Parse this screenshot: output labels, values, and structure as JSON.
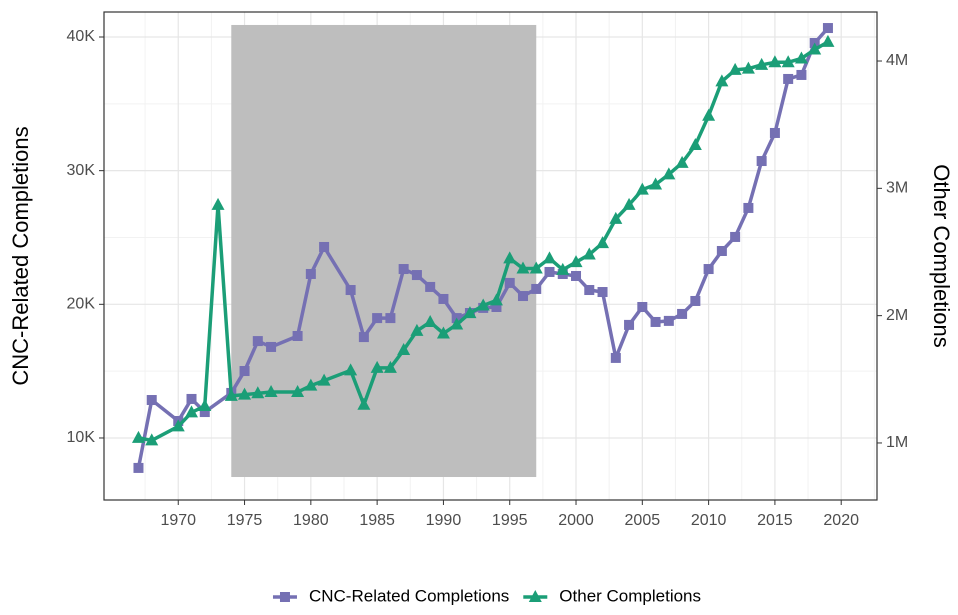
{
  "chart_data": {
    "type": "line",
    "y_label": "CNC-Related Completions",
    "y2_label": "Other Completions",
    "xlim": [
      1964.4,
      2022.7
    ],
    "xticks": [
      1970,
      1975,
      1980,
      1985,
      1990,
      1995,
      2000,
      2005,
      2010,
      2015,
      2020
    ],
    "ylim": [
      5360,
      41870
    ],
    "yticks": [
      {
        "value": 10000,
        "label": "10K"
      },
      {
        "value": 20000,
        "label": "20K"
      },
      {
        "value": 30000,
        "label": "30K"
      },
      {
        "value": 40000,
        "label": "40K"
      }
    ],
    "y2lim": [
      552000,
      4385000
    ],
    "y2ticks": [
      {
        "value": 1000000,
        "label": "1M"
      },
      {
        "value": 2000000,
        "label": "2M"
      },
      {
        "value": 3000000,
        "label": "3M"
      },
      {
        "value": 4000000,
        "label": "4M"
      }
    ],
    "grid": true,
    "legend": "bottom",
    "shaded_region": {
      "color": "#bebebe",
      "xlim": [
        1974,
        1997
      ],
      "ylim": [
        7080,
        40900
      ]
    },
    "series": [
      {
        "name": "CNC-Related Completions",
        "color": "#7570b3",
        "marker": "square",
        "x": [
          1967,
          1968,
          1970,
          1971,
          1972,
          1974,
          1975,
          1976,
          1977,
          1979,
          1980,
          1981,
          1983,
          1984,
          1985,
          1986,
          1987,
          1988,
          1989,
          1990,
          1991,
          1992,
          1993,
          1994,
          1995,
          1996,
          1997,
          1998,
          1999,
          2000,
          2001,
          2002,
          2003,
          2004,
          2005,
          2006,
          2007,
          2008,
          2009,
          2010,
          2011,
          2012,
          2013,
          2014,
          2015,
          2016,
          2017,
          2018,
          2019
        ],
        "values": [
          7760,
          12840,
          11270,
          12920,
          11940,
          13370,
          15010,
          17250,
          16810,
          17630,
          22270,
          24290,
          21070,
          17550,
          18970,
          18970,
          22640,
          22190,
          21300,
          20400,
          18970,
          19350,
          19730,
          19800,
          21600,
          20620,
          21150,
          22420,
          22270,
          22120,
          21070,
          20920,
          15990,
          18460,
          19800,
          18680,
          18760,
          19280,
          20250,
          22640,
          23990,
          25040,
          27210,
          30720,
          32820,
          36860,
          37160,
          39550,
          40670
        ]
      },
      {
        "name": "Other Completions",
        "color": "#1b9e77",
        "marker": "triangle",
        "axis": "y2",
        "x": [
          1967,
          1968,
          1970,
          1971,
          1972,
          1973,
          1974,
          1975,
          1976,
          1977,
          1979,
          1980,
          1981,
          1983,
          1984,
          1985,
          1986,
          1987,
          1988,
          1989,
          1990,
          1991,
          1992,
          1993,
          1994,
          1995,
          1996,
          1997,
          1998,
          1999,
          2000,
          2001,
          2002,
          2003,
          2004,
          2005,
          2006,
          2007,
          2008,
          2009,
          2010,
          2011,
          2012,
          2013,
          2014,
          2015,
          2016,
          2017,
          2018,
          2019
        ],
        "values": [
          1040000,
          1020000,
          1130000,
          1240000,
          1290000,
          2870000,
          1370000,
          1380000,
          1390000,
          1400000,
          1400000,
          1450000,
          1490000,
          1570000,
          1300000,
          1590000,
          1590000,
          1730000,
          1880000,
          1950000,
          1860000,
          1930000,
          2020000,
          2080000,
          2120000,
          2450000,
          2370000,
          2370000,
          2450000,
          2360000,
          2420000,
          2480000,
          2570000,
          2760000,
          2870000,
          2990000,
          3030000,
          3110000,
          3200000,
          3340000,
          3570000,
          3840000,
          3930000,
          3940000,
          3970000,
          3990000,
          3990000,
          4020000,
          4090000,
          4150000
        ]
      }
    ]
  }
}
